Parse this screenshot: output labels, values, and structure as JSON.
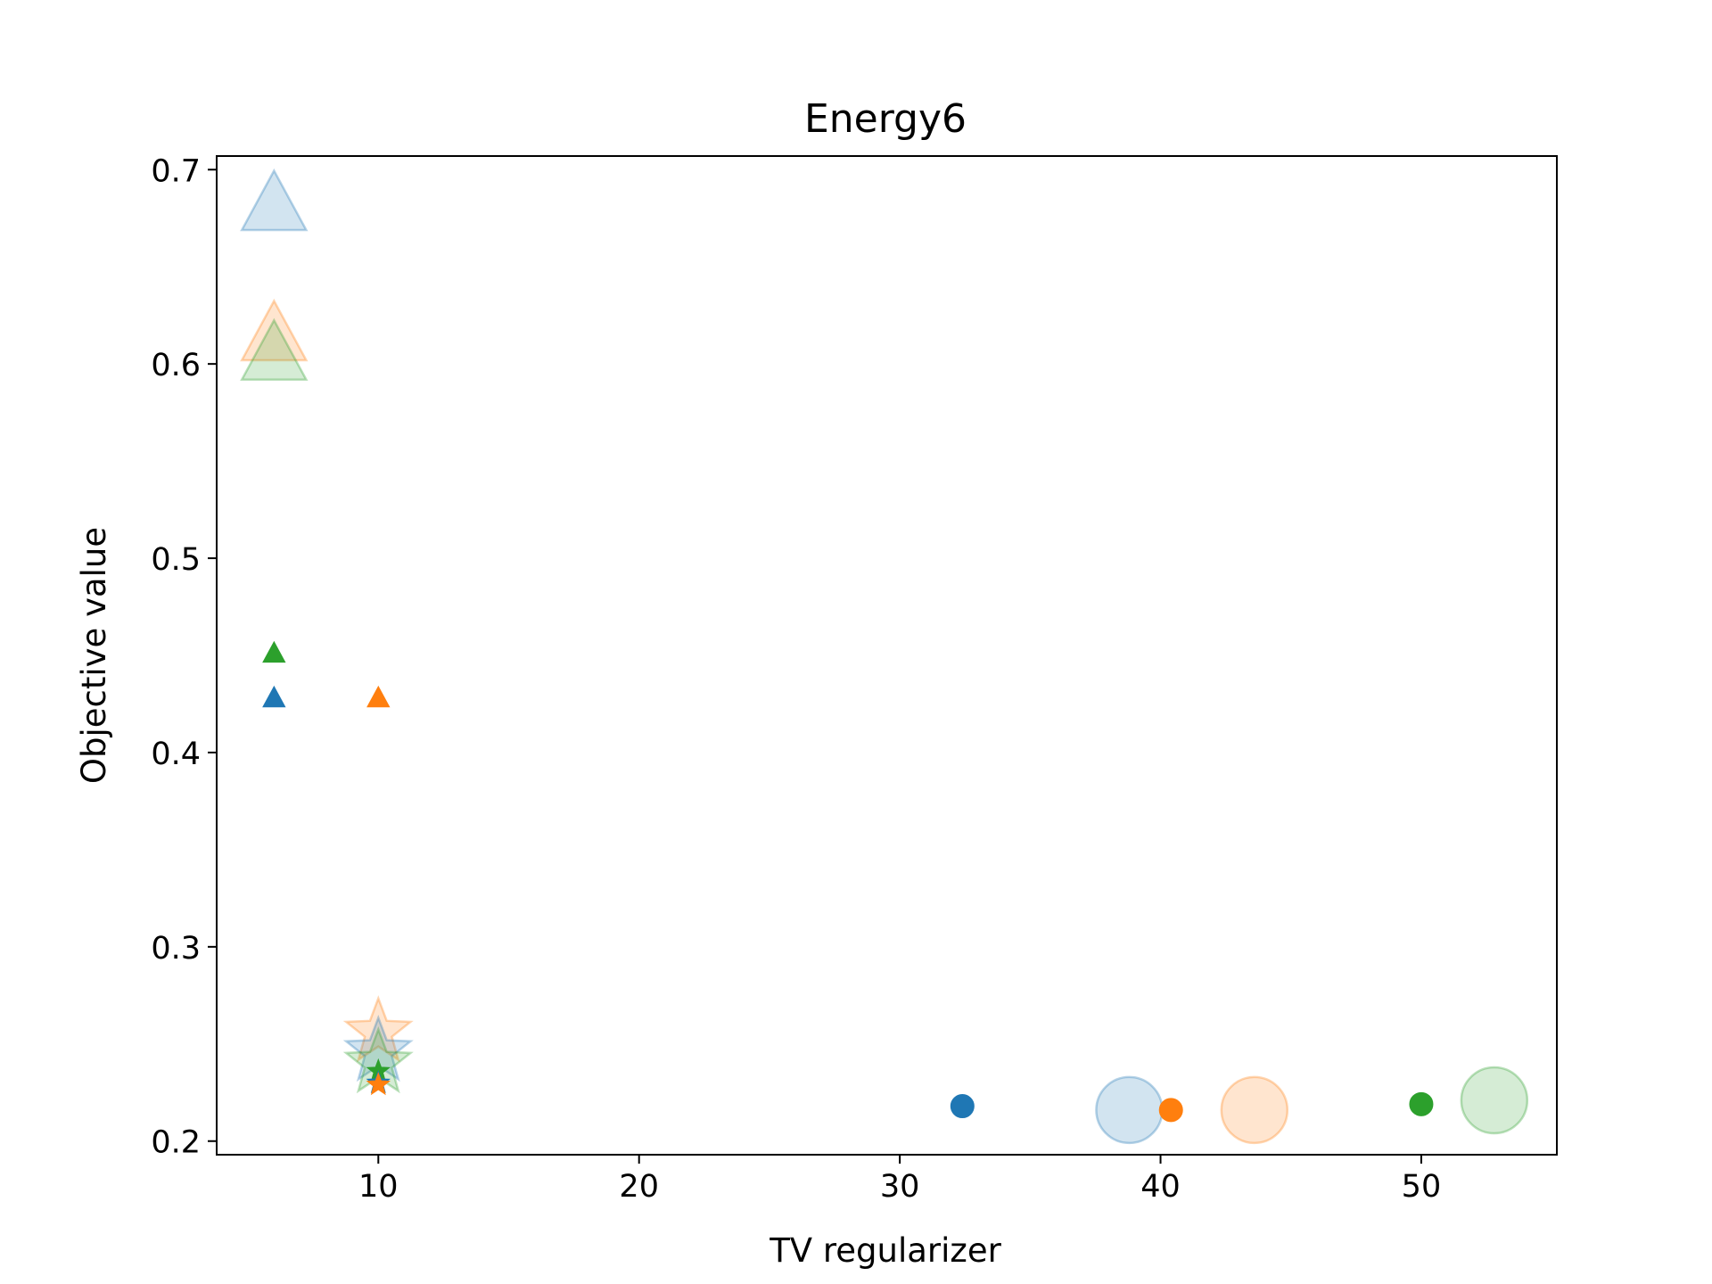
{
  "chart_data": {
    "type": "scatter",
    "title": "Energy6",
    "xlabel": "TV regularizer",
    "ylabel": "Objective value",
    "xlim": [
      3.8,
      55.2
    ],
    "ylim": [
      0.193,
      0.707
    ],
    "xticks": [
      10,
      20,
      30,
      40,
      50
    ],
    "xtick_labels": [
      "10",
      "20",
      "30",
      "40",
      "50"
    ],
    "yticks": [
      0.2,
      0.3,
      0.4,
      0.5,
      0.6,
      0.7
    ],
    "ytick_labels": [
      "0.2",
      "0.3",
      "0.4",
      "0.5",
      "0.6",
      "0.7"
    ],
    "grid": false,
    "colors": {
      "blue": "#1f77b4",
      "orange": "#ff7f0e",
      "green": "#2ca02c"
    },
    "points": [
      {
        "x": 6.0,
        "y": 0.682,
        "marker": "triangle",
        "color": "blue",
        "size": "large",
        "alpha": 0.2
      },
      {
        "x": 6.0,
        "y": 0.615,
        "marker": "triangle",
        "color": "orange",
        "size": "large",
        "alpha": 0.2
      },
      {
        "x": 6.0,
        "y": 0.605,
        "marker": "triangle",
        "color": "green",
        "size": "large",
        "alpha": 0.2
      },
      {
        "x": 6.0,
        "y": 0.451,
        "marker": "triangle",
        "color": "green",
        "size": "small",
        "alpha": 1
      },
      {
        "x": 6.0,
        "y": 0.428,
        "marker": "triangle",
        "color": "blue",
        "size": "small",
        "alpha": 1
      },
      {
        "x": 10.0,
        "y": 0.428,
        "marker": "triangle",
        "color": "orange",
        "size": "small",
        "alpha": 1
      },
      {
        "x": 10.0,
        "y": 0.256,
        "marker": "star",
        "color": "orange",
        "size": "large",
        "alpha": 0.2
      },
      {
        "x": 10.0,
        "y": 0.246,
        "marker": "star",
        "color": "blue",
        "size": "large",
        "alpha": 0.2
      },
      {
        "x": 10.0,
        "y": 0.24,
        "marker": "star",
        "color": "green",
        "size": "large",
        "alpha": 0.2
      },
      {
        "x": 10.0,
        "y": 0.236,
        "marker": "star",
        "color": "green",
        "size": "small",
        "alpha": 1
      },
      {
        "x": 10.0,
        "y": 0.23,
        "marker": "star",
        "color": "blue",
        "size": "small",
        "alpha": 1
      },
      {
        "x": 10.0,
        "y": 0.229,
        "marker": "star",
        "color": "orange",
        "size": "small",
        "alpha": 1
      },
      {
        "x": 32.4,
        "y": 0.218,
        "marker": "circle",
        "color": "blue",
        "size": "small",
        "alpha": 1
      },
      {
        "x": 38.8,
        "y": 0.216,
        "marker": "circle",
        "color": "blue",
        "size": "large",
        "alpha": 0.2
      },
      {
        "x": 40.4,
        "y": 0.216,
        "marker": "circle",
        "color": "orange",
        "size": "small",
        "alpha": 1
      },
      {
        "x": 43.6,
        "y": 0.216,
        "marker": "circle",
        "color": "orange",
        "size": "large",
        "alpha": 0.2
      },
      {
        "x": 50.0,
        "y": 0.219,
        "marker": "circle",
        "color": "green",
        "size": "small",
        "alpha": 1
      },
      {
        "x": 52.8,
        "y": 0.221,
        "marker": "circle",
        "color": "green",
        "size": "large",
        "alpha": 0.2
      }
    ]
  }
}
